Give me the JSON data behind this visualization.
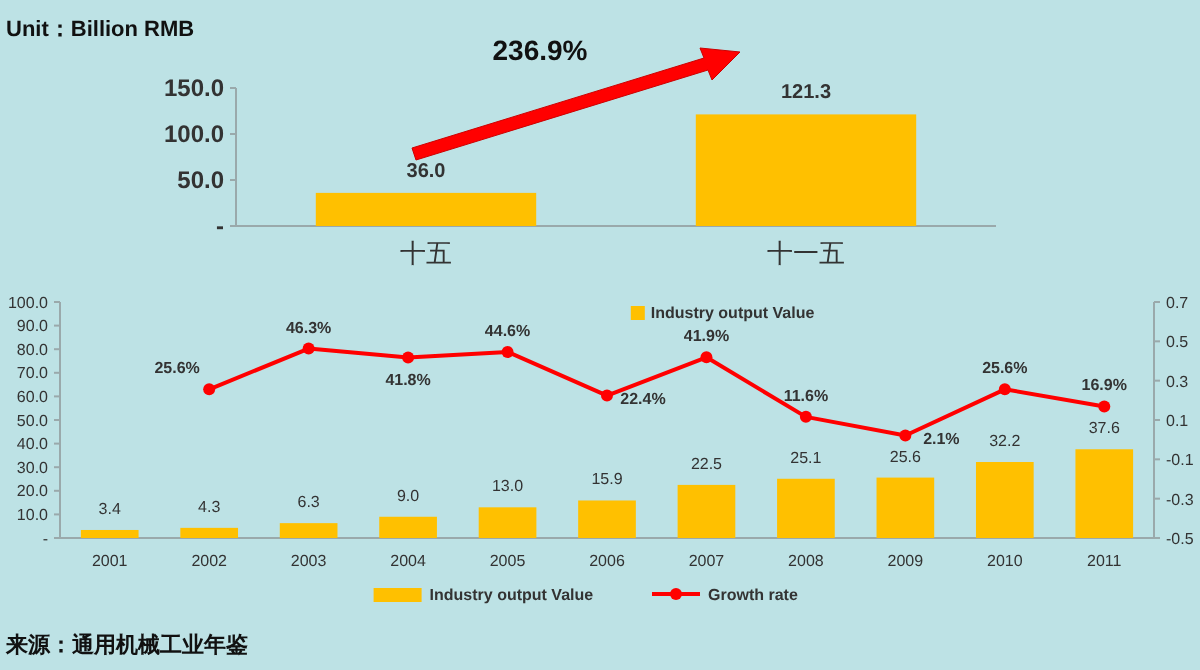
{
  "chart_data": [
    {
      "type": "bar",
      "categories": [
        "十五",
        "十一五"
      ],
      "series": [
        {
          "name": "Industry output Value",
          "color": "#ffc000",
          "values": [
            36.0,
            121.3
          ],
          "value_labels": [
            "36.0",
            "121.3"
          ]
        }
      ],
      "ylim": [
        0,
        150
      ],
      "yticks": [
        {
          "value": 0,
          "label": "-"
        },
        {
          "value": 50,
          "label": "50.0"
        },
        {
          "value": 100,
          "label": "100.0"
        },
        {
          "value": 150,
          "label": "150.0"
        }
      ],
      "annotations": [
        "Unit：Billion RMB",
        "236.9%"
      ],
      "legend": "bottom",
      "grid": false
    },
    {
      "type": "bar",
      "categories": [
        "2001",
        "2002",
        "2003",
        "2004",
        "2005",
        "2006",
        "2007",
        "2008",
        "2009",
        "2010",
        "2011"
      ],
      "series": [
        {
          "name": "Industry output Value",
          "color": "#ffc000",
          "values": [
            3.4,
            4.3,
            6.3,
            9.0,
            13.0,
            15.9,
            22.5,
            25.1,
            25.6,
            32.2,
            37.6
          ],
          "value_labels": [
            "3.4",
            "4.3",
            "6.3",
            "9.0",
            "13.0",
            "15.9",
            "22.5",
            "25.1",
            "25.6",
            "32.2",
            "37.6"
          ]
        },
        {
          "name": "Growth rate",
          "type": "line",
          "axis": "y2",
          "color": "#ff0000",
          "marker": "circle",
          "values": [
            null,
            0.256,
            0.463,
            0.418,
            0.446,
            0.224,
            0.419,
            0.116,
            0.021,
            0.256,
            0.169
          ],
          "value_labels": [
            null,
            "25.6%",
            "46.3%",
            "41.8%",
            "44.6%",
            "22.4%",
            "41.9%",
            "11.6%",
            "2.1%",
            "25.6%",
            "16.9%"
          ]
        }
      ],
      "ylim": [
        0,
        100
      ],
      "yticks": [
        {
          "value": 0,
          "label": "-"
        },
        {
          "value": 10,
          "label": "10.0"
        },
        {
          "value": 20,
          "label": "20.0"
        },
        {
          "value": 30,
          "label": "30.0"
        },
        {
          "value": 40,
          "label": "40.0"
        },
        {
          "value": 50,
          "label": "50.0"
        },
        {
          "value": 60,
          "label": "60.0"
        },
        {
          "value": 70,
          "label": "70.0"
        },
        {
          "value": 80,
          "label": "80.0"
        },
        {
          "value": 90,
          "label": "90.0"
        },
        {
          "value": 100,
          "label": "100.0"
        }
      ],
      "y2lim": [
        -0.5,
        0.7
      ],
      "y2ticks": [
        -0.5,
        -0.3,
        -0.1,
        0.1,
        0.3,
        0.5,
        0.7
      ],
      "annotations": [
        "来源：通用机械工业年鉴"
      ],
      "legend": "bottom",
      "grid": false
    }
  ]
}
